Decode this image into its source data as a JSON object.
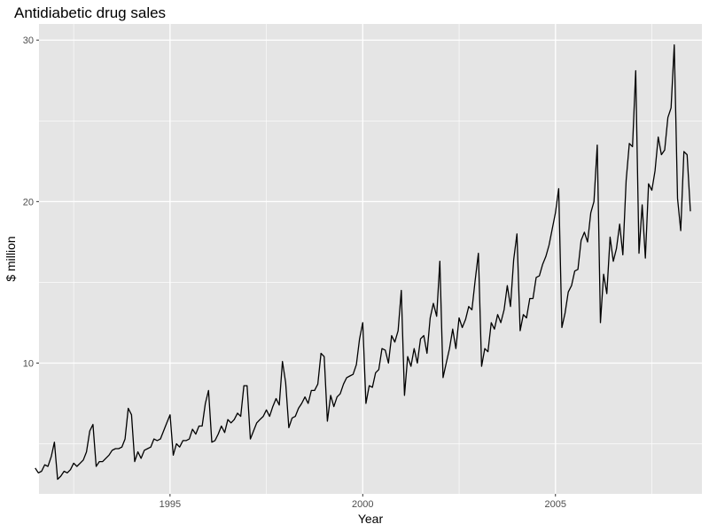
{
  "chart_data": {
    "type": "line",
    "title": "Antidiabetic drug sales",
    "xlabel": "Year",
    "ylabel": "$ million",
    "xlim": [
      1991.6,
      2008.8
    ],
    "ylim": [
      1.9,
      31.0
    ],
    "x_ticks": [
      1995,
      2000,
      2005
    ],
    "x_tick_labels": [
      "1995",
      "2000",
      "2005"
    ],
    "y_ticks": [
      10,
      20,
      30
    ],
    "y_tick_labels": [
      "10",
      "20",
      "30"
    ],
    "grid": true,
    "legend": "none",
    "background": "#e5e5e5",
    "gridline_color": "#ffffff",
    "line_color": "#000000",
    "x_start": "1991-07",
    "frequency": "monthly",
    "series": [
      {
        "values": [
          3.5,
          3.2,
          3.3,
          3.7,
          3.6,
          4.2,
          5.1,
          2.8,
          3.0,
          3.3,
          3.2,
          3.4,
          3.8,
          3.6,
          3.8,
          4.0,
          4.5,
          5.8,
          6.2,
          3.6,
          3.9,
          3.9,
          4.1,
          4.3,
          4.6,
          4.7,
          4.7,
          4.8,
          5.3,
          7.2,
          6.8,
          3.9,
          4.5,
          4.1,
          4.6,
          4.7,
          4.8,
          5.3,
          5.2,
          5.3,
          5.8,
          6.3,
          6.8,
          4.3,
          5.0,
          4.8,
          5.2,
          5.2,
          5.3,
          5.9,
          5.6,
          6.1,
          6.1,
          7.5,
          8.3,
          5.1,
          5.2,
          5.6,
          6.1,
          5.7,
          6.5,
          6.3,
          6.5,
          6.9,
          6.7,
          8.6,
          8.6,
          5.3,
          5.8,
          6.3,
          6.5,
          6.7,
          7.1,
          6.7,
          7.3,
          7.8,
          7.4,
          10.1,
          8.8,
          6.0,
          6.6,
          6.7,
          7.2,
          7.5,
          7.9,
          7.5,
          8.3,
          8.3,
          8.7,
          10.6,
          10.4,
          6.4,
          8.0,
          7.3,
          7.9,
          8.1,
          8.7,
          9.1,
          9.2,
          9.3,
          9.9,
          11.5,
          12.5,
          7.5,
          8.6,
          8.5,
          9.4,
          9.6,
          10.9,
          10.8,
          10.0,
          11.7,
          11.3,
          12.0,
          14.5,
          8.0,
          10.4,
          9.8,
          10.9,
          10.0,
          11.5,
          11.7,
          10.6,
          12.8,
          13.7,
          12.9,
          16.3,
          9.1,
          10.0,
          10.9,
          12.1,
          10.9,
          12.8,
          12.2,
          12.7,
          13.5,
          13.3,
          15.1,
          16.8,
          9.8,
          10.9,
          10.7,
          12.5,
          12.1,
          13.0,
          12.5,
          13.3,
          14.8,
          13.5,
          16.4,
          18.0,
          12.0,
          13.0,
          12.8,
          14.0,
          14.0,
          15.3,
          15.4,
          16.1,
          16.6,
          17.3,
          18.3,
          19.3,
          20.8,
          12.2,
          13.1,
          14.4,
          14.8,
          15.7,
          15.8,
          17.6,
          18.1,
          17.5,
          19.3,
          20.0,
          23.5,
          12.5,
          15.5,
          14.3,
          17.8,
          16.3,
          17.1,
          18.6,
          16.7,
          21.3,
          23.6,
          23.4,
          28.1,
          16.8,
          19.8,
          16.5,
          21.1,
          20.7,
          21.9,
          24.0,
          22.9,
          23.2,
          25.2,
          25.8,
          29.7,
          20.2,
          18.2,
          23.1,
          22.9,
          19.4
        ]
      }
    ]
  }
}
